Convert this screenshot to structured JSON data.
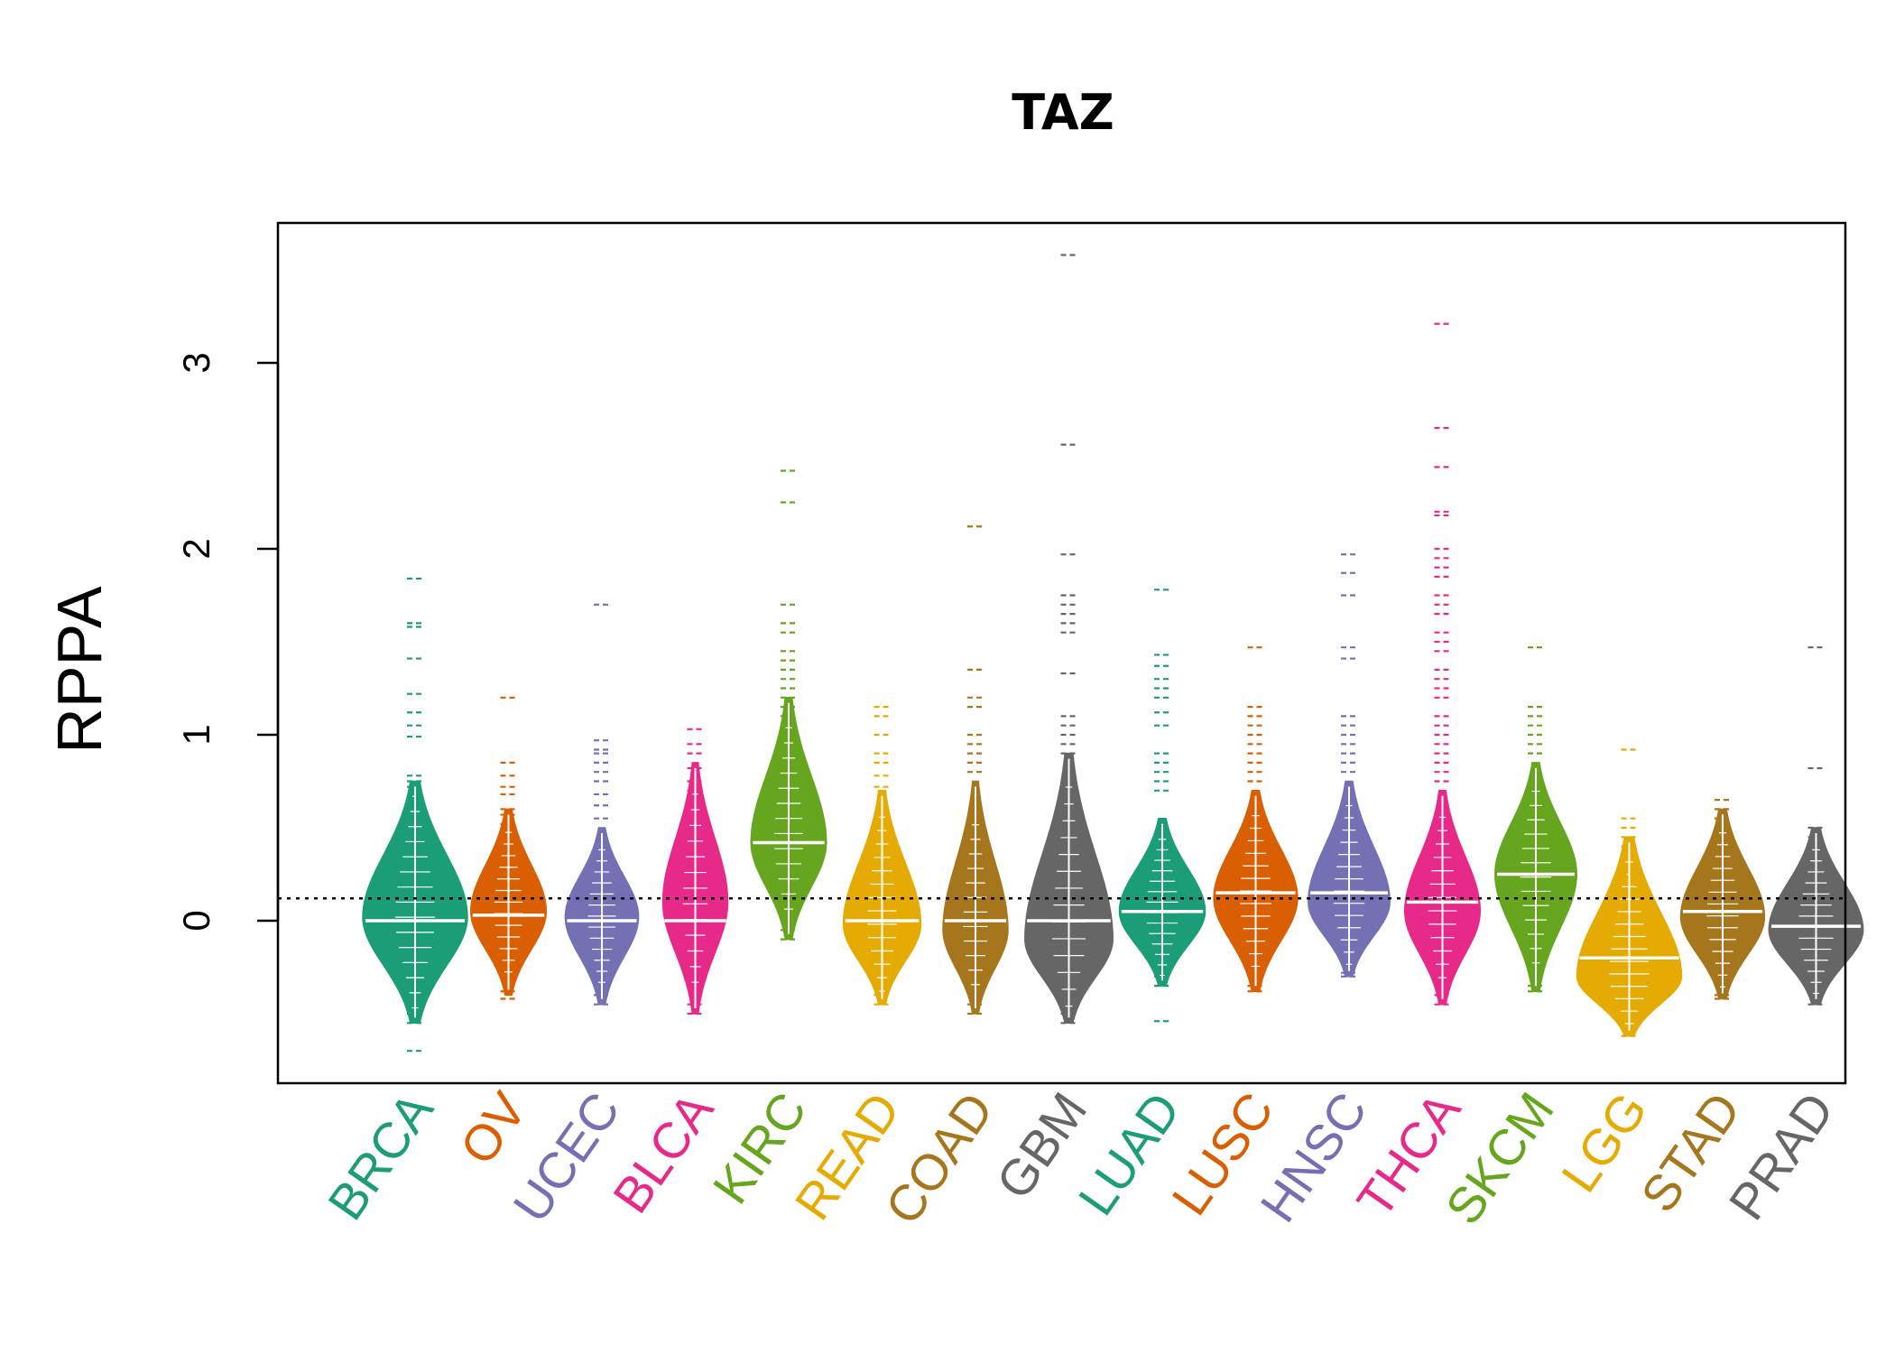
{
  "chart_data": {
    "type": "beanplot",
    "title": "TAZ",
    "xlabel": "",
    "ylabel": "RPPA",
    "ylim": [
      -0.87,
      3.75
    ],
    "yticks": [
      0,
      1,
      2,
      3
    ],
    "grid": false,
    "legend": "none",
    "overall_mean_line": 0.12,
    "categories": [
      "BRCA",
      "OV",
      "UCEC",
      "BLCA",
      "KIRC",
      "READ",
      "COAD",
      "GBM",
      "LUAD",
      "LUSC",
      "HNSC",
      "THCA",
      "SKCM",
      "LGG",
      "STAD",
      "PRAD"
    ],
    "series": [
      {
        "category": "BRCA",
        "color": "#1B9E77",
        "mean": 0.0,
        "min": -0.55,
        "max": 0.75,
        "peak": 0.02,
        "width": 1.0,
        "outliers": [
          1.84,
          1.6,
          1.58,
          1.41,
          1.22,
          1.12,
          1.05,
          0.99,
          0.78,
          0.75,
          0.72,
          0.67,
          -0.55,
          -0.5,
          -0.44,
          -0.7
        ]
      },
      {
        "category": "OV",
        "color": "#D95F02",
        "mean": 0.03,
        "min": -0.4,
        "max": 0.6,
        "peak": 0.05,
        "width": 0.72,
        "outliers": [
          1.2,
          0.85,
          0.78,
          0.72,
          0.68,
          0.6,
          0.57,
          0.52,
          -0.38,
          -0.42
        ]
      },
      {
        "category": "UCEC",
        "color": "#7570B3",
        "mean": 0.0,
        "min": -0.45,
        "max": 0.5,
        "peak": 0.02,
        "width": 0.7,
        "outliers": [
          1.7,
          0.97,
          0.92,
          0.9,
          0.85,
          0.8,
          0.75,
          0.68,
          0.62,
          0.55,
          -0.4,
          -0.45
        ]
      },
      {
        "category": "BLCA",
        "color": "#E7298A",
        "mean": 0.0,
        "min": -0.5,
        "max": 0.85,
        "peak": 0.1,
        "width": 0.62,
        "outliers": [
          1.03,
          0.95,
          0.9,
          0.82,
          0.75,
          0.7,
          -0.45,
          -0.5
        ]
      },
      {
        "category": "KIRC",
        "color": "#66A61E",
        "mean": 0.42,
        "min": -0.1,
        "max": 1.2,
        "peak": 0.42,
        "width": 0.72,
        "outliers": [
          2.42,
          2.25,
          1.7,
          1.6,
          1.55,
          1.45,
          1.4,
          1.35,
          1.3,
          1.25,
          1.2,
          1.15,
          1.1,
          1.05,
          -0.1,
          -0.05
        ]
      },
      {
        "category": "READ",
        "color": "#E6AB02",
        "mean": 0.0,
        "min": -0.45,
        "max": 0.7,
        "peak": -0.02,
        "width": 0.74,
        "outliers": [
          1.15,
          1.1,
          1.0,
          0.9,
          0.85,
          0.78,
          0.72,
          -0.45,
          -0.4
        ]
      },
      {
        "category": "COAD",
        "color": "#A6761D",
        "mean": 0.0,
        "min": -0.5,
        "max": 0.75,
        "peak": -0.05,
        "width": 0.62,
        "outliers": [
          2.12,
          1.35,
          1.2,
          1.15,
          1.0,
          0.95,
          0.9,
          0.85,
          0.8,
          -0.45,
          -0.5
        ]
      },
      {
        "category": "GBM",
        "color": "#666666",
        "mean": 0.0,
        "min": -0.55,
        "max": 0.9,
        "peak": -0.1,
        "width": 0.84,
        "outliers": [
          3.58,
          2.56,
          1.97,
          1.75,
          1.7,
          1.65,
          1.6,
          1.55,
          1.33,
          1.1,
          1.05,
          1.0,
          0.95,
          0.9,
          -0.5,
          -0.55
        ]
      },
      {
        "category": "LUAD",
        "color": "#1B9E77",
        "mean": 0.05,
        "min": -0.35,
        "max": 0.55,
        "peak": 0.05,
        "width": 0.82,
        "outliers": [
          1.78,
          1.43,
          1.37,
          1.3,
          1.25,
          1.2,
          1.12,
          1.05,
          0.9,
          0.85,
          0.8,
          0.75,
          0.7,
          -0.3,
          -0.35,
          -0.54
        ]
      },
      {
        "category": "LUSC",
        "color": "#D95F02",
        "mean": 0.15,
        "min": -0.38,
        "max": 0.7,
        "peak": 0.12,
        "width": 0.8,
        "outliers": [
          1.47,
          1.15,
          1.1,
          1.05,
          1.0,
          0.95,
          0.9,
          0.85,
          0.8,
          0.75,
          -0.35,
          -0.38
        ]
      },
      {
        "category": "HNSC",
        "color": "#7570B3",
        "mean": 0.15,
        "min": -0.3,
        "max": 0.75,
        "peak": 0.1,
        "width": 0.78,
        "outliers": [
          1.97,
          1.87,
          1.75,
          1.47,
          1.41,
          1.1,
          1.05,
          1.0,
          0.95,
          0.9,
          0.85,
          0.8,
          -0.28,
          -0.3
        ]
      },
      {
        "category": "THCA",
        "color": "#E7298A",
        "mean": 0.1,
        "min": -0.45,
        "max": 0.7,
        "peak": 0.05,
        "width": 0.72,
        "outliers": [
          3.21,
          2.65,
          2.44,
          2.2,
          2.18,
          2.0,
          1.95,
          1.9,
          1.85,
          1.75,
          1.7,
          1.65,
          1.55,
          1.5,
          1.45,
          1.35,
          1.3,
          1.25,
          1.2,
          1.1,
          1.05,
          1.0,
          0.95,
          0.9,
          0.85,
          0.8,
          0.75,
          -0.4,
          -0.45
        ]
      },
      {
        "category": "SKCM",
        "color": "#66A61E",
        "mean": 0.25,
        "min": -0.38,
        "max": 0.85,
        "peak": 0.25,
        "width": 0.78,
        "outliers": [
          1.47,
          1.15,
          1.1,
          1.05,
          1.0,
          0.95,
          0.9,
          -0.35,
          -0.38
        ]
      },
      {
        "category": "LGG",
        "color": "#E6AB02",
        "mean": -0.2,
        "min": -0.62,
        "max": 0.45,
        "peak": -0.3,
        "width": 1.0,
        "outliers": [
          0.92,
          0.55,
          0.5,
          0.45,
          0.4,
          0.35,
          0.3,
          0.25,
          -0.58,
          -0.62
        ]
      },
      {
        "category": "STAD",
        "color": "#A6761D",
        "mean": 0.05,
        "min": -0.42,
        "max": 0.6,
        "peak": 0.02,
        "width": 0.8,
        "outliers": [
          0.65,
          0.6,
          0.55,
          0.5,
          -0.4,
          -0.42
        ]
      },
      {
        "category": "PRAD",
        "color": "#666666",
        "mean": -0.03,
        "min": -0.45,
        "max": 0.5,
        "peak": -0.05,
        "width": 0.9,
        "outliers": [
          1.47,
          0.82,
          0.5,
          0.45,
          0.4,
          -0.4,
          -0.45
        ]
      }
    ]
  }
}
